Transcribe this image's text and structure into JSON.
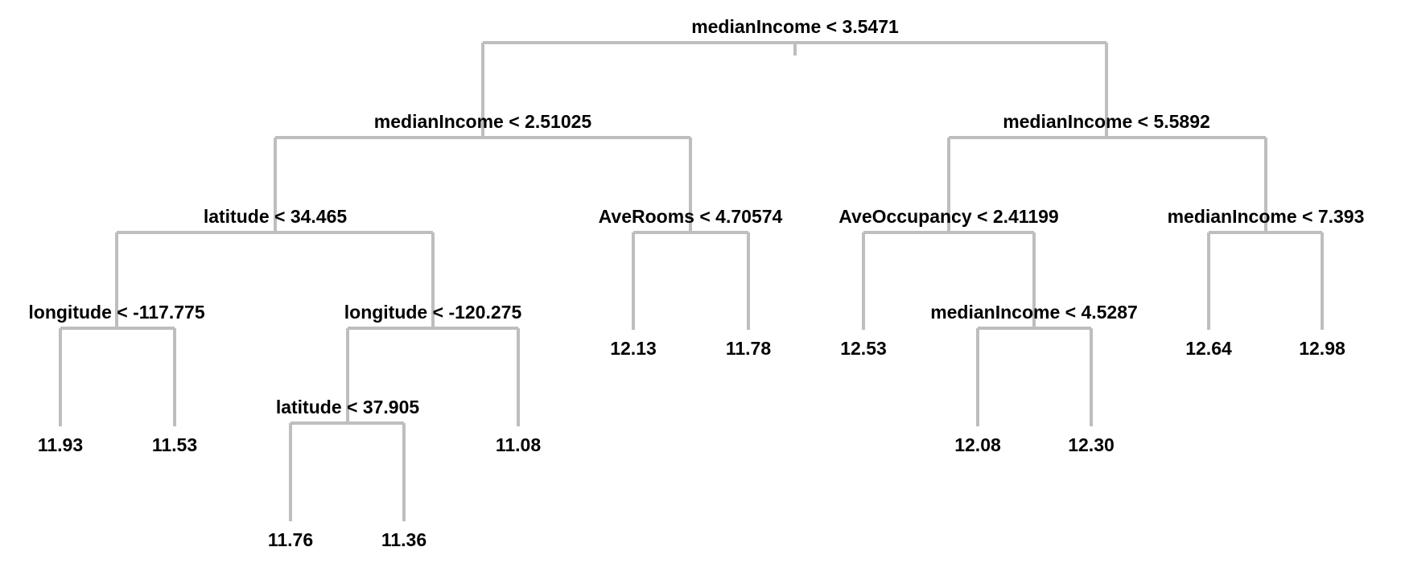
{
  "colors": {
    "edges": "#bebebe",
    "text": "#000000",
    "background": "#ffffff"
  },
  "tree": {
    "root": {
      "label": "medianIncome < 3.5471",
      "children": [
        {
          "label": "medianIncome < 2.51025",
          "children": [
            {
              "label": "latitude < 34.465",
              "children": [
                {
                  "label": "longitude < -117.775",
                  "children": [
                    {
                      "leaf": "11.93"
                    },
                    {
                      "leaf": "11.53"
                    }
                  ]
                },
                {
                  "label": "longitude < -120.275",
                  "children": [
                    {
                      "label": "latitude < 37.905",
                      "children": [
                        {
                          "leaf": "11.76"
                        },
                        {
                          "leaf": "11.36"
                        }
                      ]
                    },
                    {
                      "leaf": "11.08"
                    }
                  ]
                }
              ]
            },
            {
              "label": "AveRooms < 4.70574",
              "children": [
                {
                  "leaf": "12.13"
                },
                {
                  "leaf": "11.78"
                }
              ]
            }
          ]
        },
        {
          "label": "medianIncome < 5.5892",
          "children": [
            {
              "label": "AveOccupancy < 2.41199",
              "children": [
                {
                  "leaf": "12.53"
                },
                {
                  "label": "medianIncome < 4.5287",
                  "children": [
                    {
                      "leaf": "12.08"
                    },
                    {
                      "leaf": "12.30"
                    }
                  ]
                }
              ]
            },
            {
              "label": "medianIncome < 7.393",
              "children": [
                {
                  "leaf": "12.64"
                },
                {
                  "leaf": "12.98"
                }
              ]
            }
          ]
        }
      ]
    }
  }
}
